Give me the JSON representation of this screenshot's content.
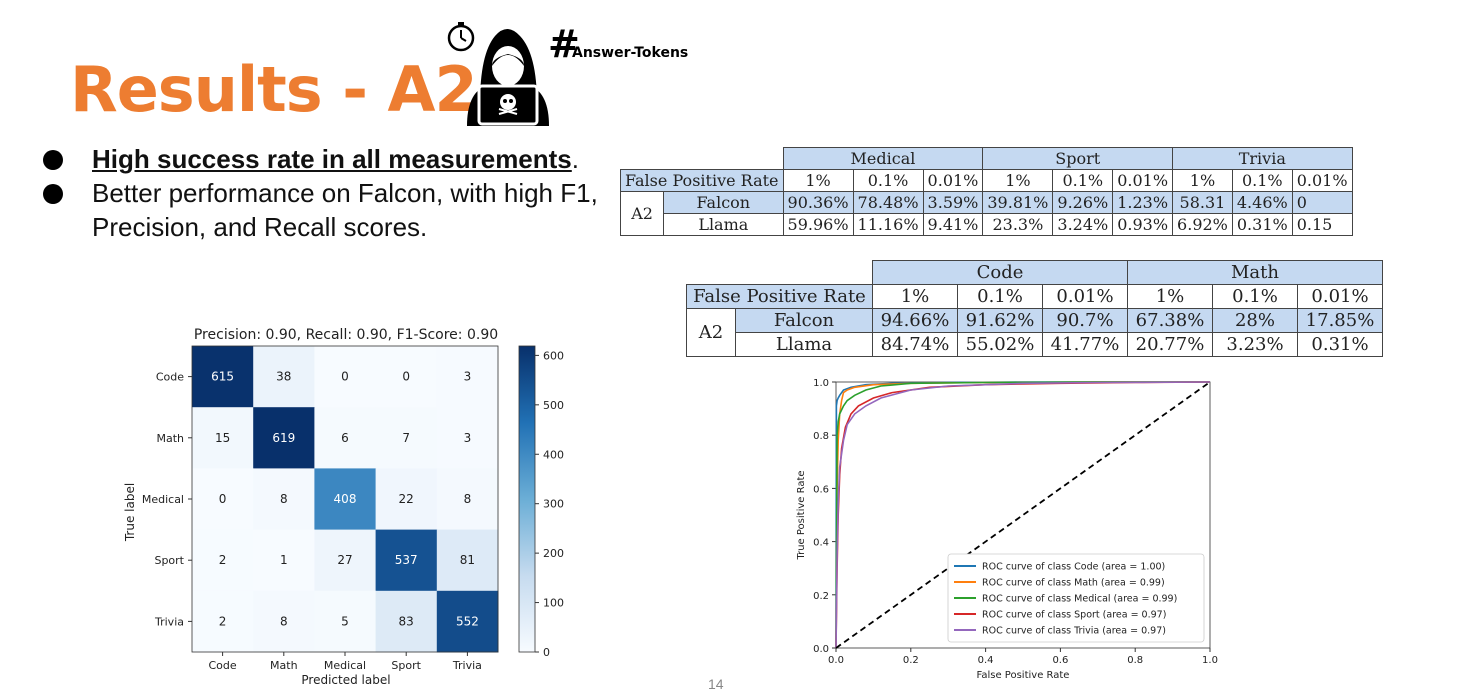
{
  "slide": {
    "title": "Results - A2",
    "hash_symbol": "#",
    "hash_label": "Answer-Tokens",
    "page_number": "14",
    "title_color": "#ed7d31"
  },
  "bullets": [
    {
      "text": "High success rate in all measurements",
      "suffix": "."
    },
    {
      "text": "Better performance on Falcon, with high F1, Precision, and Recall scores."
    }
  ],
  "table1": {
    "header_groups": [
      "Medical",
      "Sport",
      "Trivia"
    ],
    "fpr_label": "False Positive Rate",
    "fprs": [
      "1%",
      "0.1%",
      "0.01%",
      "1%",
      "0.1%",
      "0.01%",
      "1%",
      "0.1%",
      "0.01%"
    ],
    "group_label": "A2",
    "rows": [
      {
        "model": "Falcon",
        "values": [
          "90.36%",
          "78.48%",
          "3.59%",
          "39.81%",
          "9.26%",
          "1.23%",
          "58.31",
          "4.46%",
          "0"
        ]
      },
      {
        "model": "Llama",
        "values": [
          "59.96%",
          "11.16%",
          "9.41%",
          "23.3%",
          "3.24%",
          "0.93%",
          "6.92%",
          "0.31%",
          "0.15"
        ]
      }
    ]
  },
  "table2": {
    "header_groups": [
      "Code",
      "Math"
    ],
    "fpr_label": "False Positive Rate",
    "fprs": [
      "1%",
      "0.1%",
      "0.01%",
      "1%",
      "0.1%",
      "0.01%"
    ],
    "group_label": "A2",
    "rows": [
      {
        "model": "Falcon",
        "values": [
          "94.66%",
          "91.62%",
          "90.7%",
          "67.38%",
          "28%",
          "17.85%"
        ]
      },
      {
        "model": "Llama",
        "values": [
          "84.74%",
          "55.02%",
          "41.77%",
          "20.77%",
          "3.23%",
          "0.31%"
        ]
      }
    ],
    "highlight_color": "#c5d9f1"
  },
  "chart_data": [
    {
      "type": "heatmap",
      "title": "Precision: 0.90, Recall: 0.90, F1-Score: 0.90",
      "xlabel": "Predicted label",
      "ylabel": "True label",
      "x_categories": [
        "Code",
        "Math",
        "Medical",
        "Sport",
        "Trivia"
      ],
      "y_categories": [
        "Code",
        "Math",
        "Medical",
        "Sport",
        "Trivia"
      ],
      "values": [
        [
          615,
          38,
          0,
          0,
          3
        ],
        [
          15,
          619,
          6,
          7,
          3
        ],
        [
          0,
          8,
          408,
          22,
          8
        ],
        [
          2,
          1,
          27,
          537,
          81
        ],
        [
          2,
          8,
          5,
          83,
          552
        ]
      ],
      "colorbar_ticks": [
        "0",
        "100",
        "200",
        "300",
        "400",
        "500",
        "600"
      ],
      "colorbar_range": [
        0,
        619
      ],
      "colormap": "Blues"
    },
    {
      "type": "line",
      "xlabel": "False Positive Rate",
      "ylabel": "True Positive Rate",
      "xlim": [
        0,
        1
      ],
      "ylim": [
        0,
        1
      ],
      "x_ticks": [
        "0.0",
        "0.2",
        "0.4",
        "0.6",
        "0.8",
        "1.0"
      ],
      "y_ticks": [
        "0.0",
        "0.2",
        "0.4",
        "0.6",
        "0.8",
        "1.0"
      ],
      "legend_position": "lower-right",
      "series": [
        {
          "name": "ROC curve of class Code (area = 1.00)",
          "color": "#1f77b4",
          "x": [
            0,
            0.001,
            0.003,
            0.006,
            0.01,
            0.02,
            0.04,
            0.08,
            0.15,
            0.3,
            0.5,
            0.7,
            1.0
          ],
          "y": [
            0,
            0.91,
            0.93,
            0.94,
            0.95,
            0.97,
            0.98,
            0.99,
            0.995,
            0.998,
            1.0,
            1.0,
            1.0
          ]
        },
        {
          "name": "ROC curve of class Math (area = 0.99)",
          "color": "#ff7f0e",
          "x": [
            0,
            0.003,
            0.006,
            0.01,
            0.015,
            0.02,
            0.03,
            0.05,
            0.1,
            0.2,
            0.4,
            0.7,
            1.0
          ],
          "y": [
            0,
            0.6,
            0.78,
            0.88,
            0.93,
            0.96,
            0.97,
            0.98,
            0.99,
            0.995,
            0.998,
            1.0,
            1.0
          ]
        },
        {
          "name": "ROC curve of class Medical (area = 0.99)",
          "color": "#2ca02c",
          "x": [
            0,
            0.003,
            0.006,
            0.01,
            0.02,
            0.03,
            0.05,
            0.08,
            0.12,
            0.2,
            0.4,
            0.7,
            1.0
          ],
          "y": [
            0,
            0.8,
            0.85,
            0.88,
            0.91,
            0.93,
            0.95,
            0.97,
            0.985,
            0.995,
            0.998,
            1.0,
            1.0
          ]
        },
        {
          "name": "ROC curve of class Sport (area = 0.97)",
          "color": "#d62728",
          "x": [
            0,
            0.003,
            0.006,
            0.01,
            0.015,
            0.025,
            0.04,
            0.06,
            0.1,
            0.15,
            0.25,
            0.4,
            0.6,
            0.8,
            1.0
          ],
          "y": [
            0,
            0.3,
            0.5,
            0.65,
            0.75,
            0.83,
            0.88,
            0.91,
            0.94,
            0.96,
            0.98,
            0.99,
            0.995,
            0.998,
            1.0
          ]
        },
        {
          "name": "ROC curve of class Trivia (area = 0.97)",
          "color": "#9467bd",
          "x": [
            0,
            0.003,
            0.006,
            0.01,
            0.02,
            0.03,
            0.05,
            0.08,
            0.12,
            0.2,
            0.3,
            0.5,
            0.7,
            1.0
          ],
          "y": [
            0,
            0.35,
            0.55,
            0.68,
            0.78,
            0.84,
            0.88,
            0.91,
            0.94,
            0.97,
            0.985,
            0.995,
            0.998,
            1.0
          ]
        },
        {
          "name": "",
          "color": "#000000",
          "dashed": true,
          "x": [
            0,
            1
          ],
          "y": [
            0,
            1
          ]
        }
      ]
    }
  ]
}
